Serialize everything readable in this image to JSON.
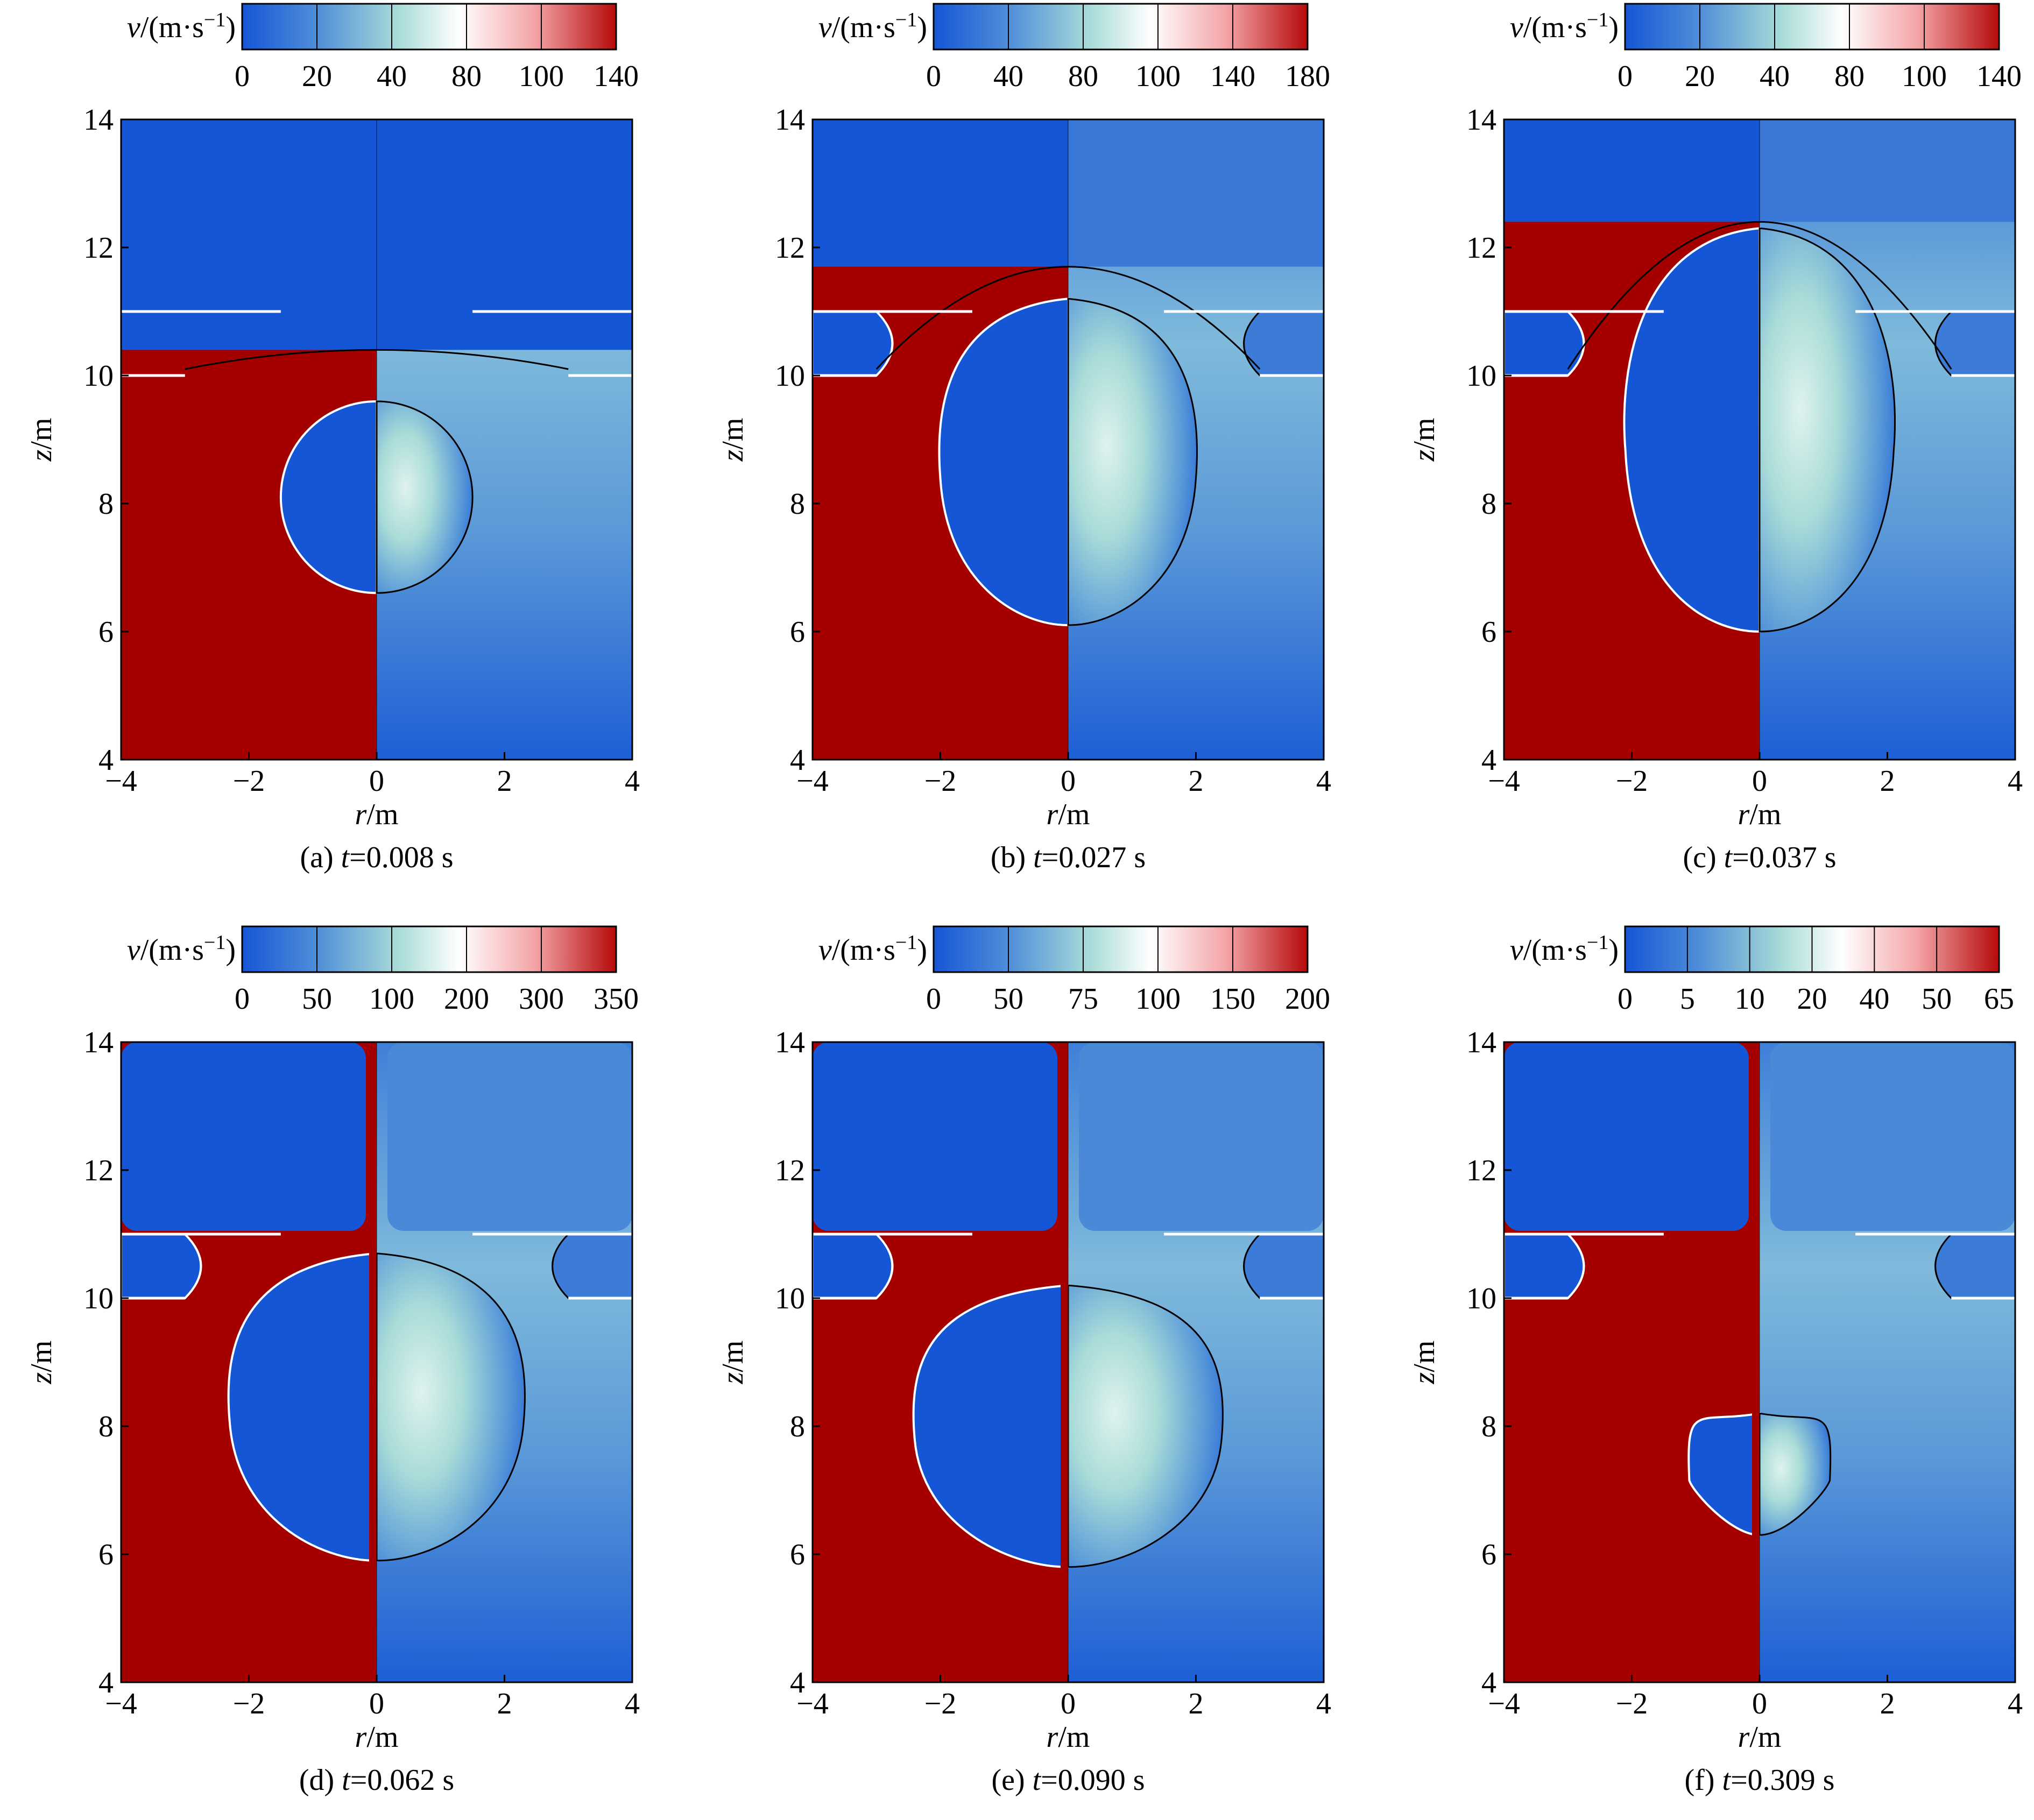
{
  "figure": {
    "colorbar_label_prefix": "v",
    "colorbar_label_unit": "/(m·s",
    "colorbar_label_exp": "−1",
    "colorbar_label_close": ")",
    "xlabel_var": "r",
    "xlabel_unit": "/m",
    "ylabel_var": "z",
    "ylabel_unit": "/m"
  },
  "chart_data": [
    {
      "type": "heatmap",
      "panel": "a",
      "caption_prefix": "(a) ",
      "caption_var": "t",
      "caption_value": "=0.008 s",
      "xlim": [
        -4,
        4
      ],
      "ylim": [
        4,
        14
      ],
      "xticks": [
        "−4",
        "−2",
        "0",
        "2",
        "4"
      ],
      "yticks": [
        "4",
        "6",
        "8",
        "10",
        "12",
        "14"
      ],
      "colorbar_ticks": [
        "0",
        "20",
        "40",
        "80",
        "100",
        "140"
      ],
      "bubble": {
        "center_z": 8.1,
        "radius": 1.5,
        "top_z": 9.6,
        "bottom_z": 6.6
      },
      "water_surface_z": 10.4,
      "colors": {
        "liquid": "#a50000",
        "gas": "#1556d6",
        "mid": "#a9dcd8",
        "high": "#f4a5a8"
      }
    },
    {
      "type": "heatmap",
      "panel": "b",
      "caption_prefix": "(b) ",
      "caption_var": "t",
      "caption_value": "=0.027 s",
      "xlim": [
        -4,
        4
      ],
      "ylim": [
        4,
        14
      ],
      "xticks": [
        "−4",
        "−2",
        "0",
        "2",
        "4"
      ],
      "yticks": [
        "4",
        "6",
        "8",
        "10",
        "12",
        "14"
      ],
      "colorbar_ticks": [
        "0",
        "40",
        "80",
        "100",
        "140",
        "180"
      ],
      "bubble": {
        "top_z": 11.2,
        "bottom_z": 6.1,
        "max_r": 2.0
      },
      "water_surface_z": 11.7,
      "colors": {
        "liquid": "#a50000",
        "gas": "#1556d6",
        "mid": "#a9dcd8",
        "high": "#f4a5a8"
      }
    },
    {
      "type": "heatmap",
      "panel": "c",
      "caption_prefix": "(c) ",
      "caption_var": "t",
      "caption_value": "=0.037 s",
      "xlim": [
        -4,
        4
      ],
      "ylim": [
        4,
        14
      ],
      "xticks": [
        "−4",
        "−2",
        "0",
        "2",
        "4"
      ],
      "yticks": [
        "4",
        "6",
        "8",
        "10",
        "12",
        "14"
      ],
      "colorbar_ticks": [
        "0",
        "20",
        "40",
        "80",
        "100",
        "140"
      ],
      "bubble": {
        "top_z": 12.3,
        "bottom_z": 6.0,
        "max_r": 2.1
      },
      "water_surface_z": 12.4,
      "colors": {
        "liquid": "#a50000",
        "gas": "#1556d6",
        "mid": "#a9dcd8",
        "high": "#f4a5a8"
      }
    },
    {
      "type": "heatmap",
      "panel": "d",
      "caption_prefix": "(d) ",
      "caption_var": "t",
      "caption_value": "=0.062 s",
      "xlim": [
        -4,
        4
      ],
      "ylim": [
        4,
        14
      ],
      "xticks": [
        "−4",
        "−2",
        "0",
        "2",
        "4"
      ],
      "yticks": [
        "4",
        "6",
        "8",
        "10",
        "12",
        "14"
      ],
      "colorbar_ticks": [
        "0",
        "50",
        "100",
        "200",
        "300",
        "350"
      ],
      "bubble": {
        "top_z": 10.7,
        "bottom_z": 5.9,
        "max_r": 2.3
      },
      "colors": {
        "liquid": "#a50000",
        "gas": "#1556d6",
        "mid": "#a9dcd8",
        "high": "#f4a5a8"
      }
    },
    {
      "type": "heatmap",
      "panel": "e",
      "caption_prefix": "(e) ",
      "caption_var": "t",
      "caption_value": "=0.090 s",
      "xlim": [
        -4,
        4
      ],
      "ylim": [
        4,
        14
      ],
      "xticks": [
        "−4",
        "−2",
        "0",
        "2",
        "4"
      ],
      "yticks": [
        "4",
        "6",
        "8",
        "10",
        "12",
        "14"
      ],
      "colorbar_ticks": [
        "0",
        "50",
        "75",
        "100",
        "150",
        "200"
      ],
      "bubble": {
        "top_z": 10.2,
        "bottom_z": 5.8,
        "max_r": 2.4
      },
      "colors": {
        "liquid": "#a50000",
        "gas": "#1556d6",
        "mid": "#a9dcd8",
        "high": "#f4a5a8"
      }
    },
    {
      "type": "heatmap",
      "panel": "f",
      "caption_prefix": "(f) ",
      "caption_var": "t",
      "caption_value": "=0.309 s",
      "xlim": [
        -4,
        4
      ],
      "ylim": [
        4,
        14
      ],
      "xticks": [
        "−4",
        "−2",
        "0",
        "2",
        "4"
      ],
      "yticks": [
        "4",
        "6",
        "8",
        "10",
        "12",
        "14"
      ],
      "colorbar_ticks": [
        "0",
        "5",
        "10",
        "20",
        "40",
        "50",
        "65"
      ],
      "bubble": {
        "top_z": 8.2,
        "bottom_z": 6.3,
        "max_r": 1.1
      },
      "colors": {
        "liquid": "#a50000",
        "gas": "#1556d6",
        "mid": "#a9dcd8",
        "high": "#f4a5a8"
      }
    }
  ]
}
